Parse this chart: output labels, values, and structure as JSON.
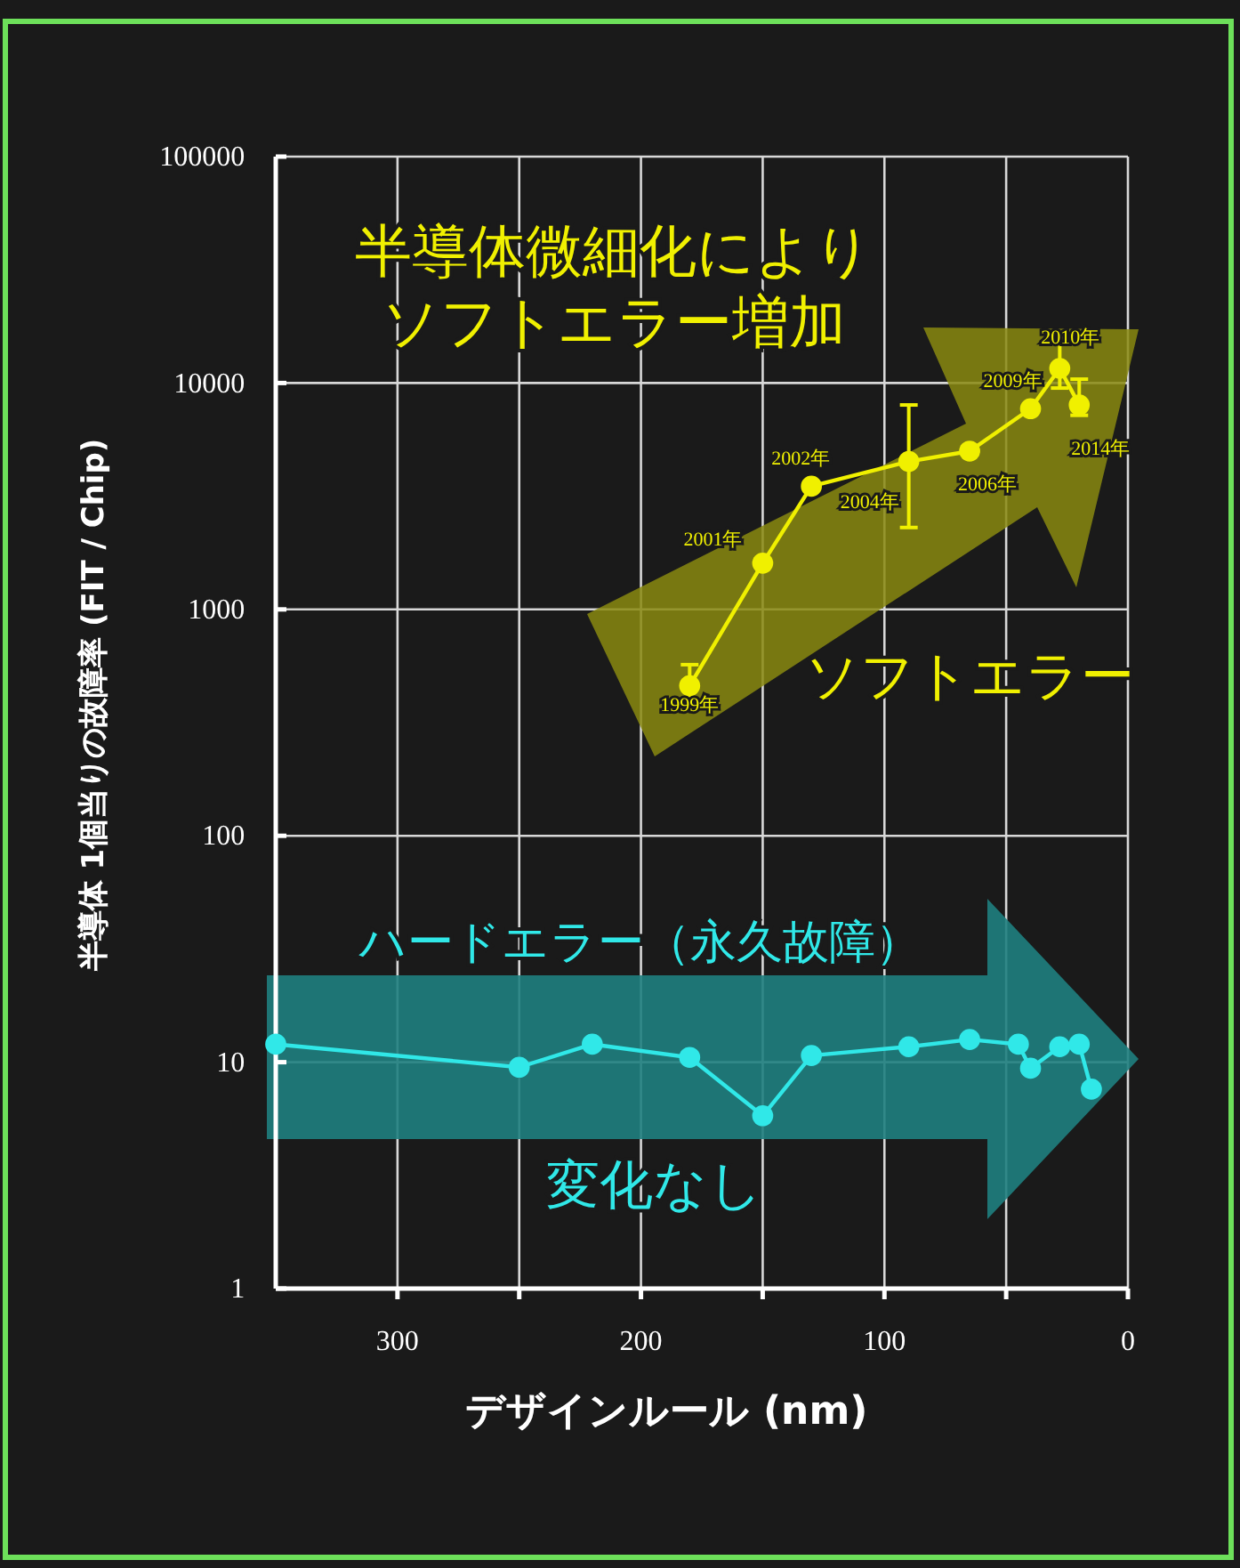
{
  "chart_data": {
    "type": "line",
    "xlabel": "デザインルール (nm)",
    "ylabel": "半導体 1個当りの故障率 (FIT / Chip)",
    "log": "y",
    "xlim": [
      350,
      0
    ],
    "ylim": [
      1,
      100000
    ],
    "xticks": [
      300,
      {
        "value": 250,
        "label": null
      },
      200,
      {
        "value": 150,
        "label": null
      },
      100,
      {
        "value": 50,
        "label": null
      },
      0
    ],
    "yticks": [
      1,
      10,
      100,
      1000,
      10000,
      100000
    ],
    "grid": true,
    "marker": "circle",
    "series": [
      {
        "name": "ソフトエラー",
        "color": "#f0f000",
        "x": [
          180,
          150,
          130,
          90,
          65,
          40,
          28,
          20
        ],
        "values": [
          460,
          1600,
          3500,
          4500,
          5000,
          7700,
          11600,
          8000
        ],
        "errors": [
          [
            390,
            570
          ],
          null,
          null,
          [
            2300,
            8000
          ],
          null,
          null,
          [
            9500,
            16000
          ],
          [
            7200,
            10400
          ]
        ]
      },
      {
        "name": "ハードエラー（永久故障）",
        "color": "#30e8e8",
        "x": [
          350,
          250,
          220,
          180,
          150,
          130,
          90,
          65,
          45,
          40,
          28,
          20,
          15
        ],
        "values": [
          12,
          9.5,
          12,
          10.5,
          5.8,
          10.7,
          11.7,
          12.6,
          12,
          9.4,
          11.7,
          12,
          7.6
        ]
      }
    ],
    "annotations": [
      "半導体微細化により",
      "ソフトエラー増加",
      "変化なし",
      {
        "text": "1999年",
        "x": 180,
        "y": 460
      },
      {
        "text": "2001年",
        "x": 150,
        "y": 1600
      },
      {
        "text": "2002年",
        "x": 130,
        "y": 3500
      },
      {
        "text": "2004年",
        "x": 90,
        "y": 4500
      },
      {
        "text": "2006年",
        "x": 65,
        "y": 5000
      },
      {
        "text": "2009年",
        "x": 40,
        "y": 7700
      },
      {
        "text": "2010年",
        "x": 28,
        "y": 11600
      },
      {
        "text": "2014年",
        "x": 20,
        "y": 8000
      }
    ]
  }
}
